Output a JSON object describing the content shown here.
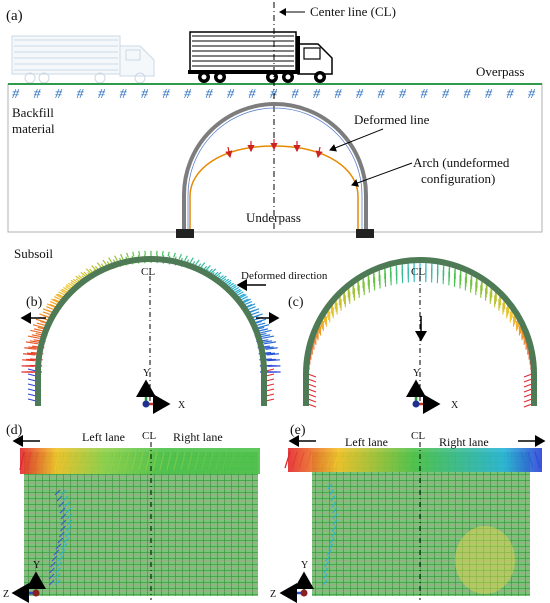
{
  "panels": {
    "a": "(a)",
    "b": "(b)",
    "c": "(c)",
    "d": "(d)",
    "e": "(e)"
  },
  "labels": {
    "center_line": "Center line (CL)",
    "overpass": "Overpass",
    "backfill_line1": "Backfill",
    "backfill_line2": "material",
    "deformed_line": "Deformed line",
    "arch_line1": "Arch (undeformed",
    "arch_line2": "configuration)",
    "underpass": "Underpass",
    "subsoil": "Subsoil",
    "deformed_direction": "Deformed direction",
    "cl_short": "CL",
    "left_lane": "Left lane",
    "right_lane": "Right lane"
  },
  "axes": {
    "y": "Y",
    "x": "X",
    "z": "Z"
  },
  "colors": {
    "ground_line": "#2e9a4a",
    "hash": "#2b6fbf",
    "arch": "#7d7d7d",
    "deformed": "#e58a00",
    "load_arrow": "#cc2222",
    "mesh_green": "#5fb35a"
  }
}
